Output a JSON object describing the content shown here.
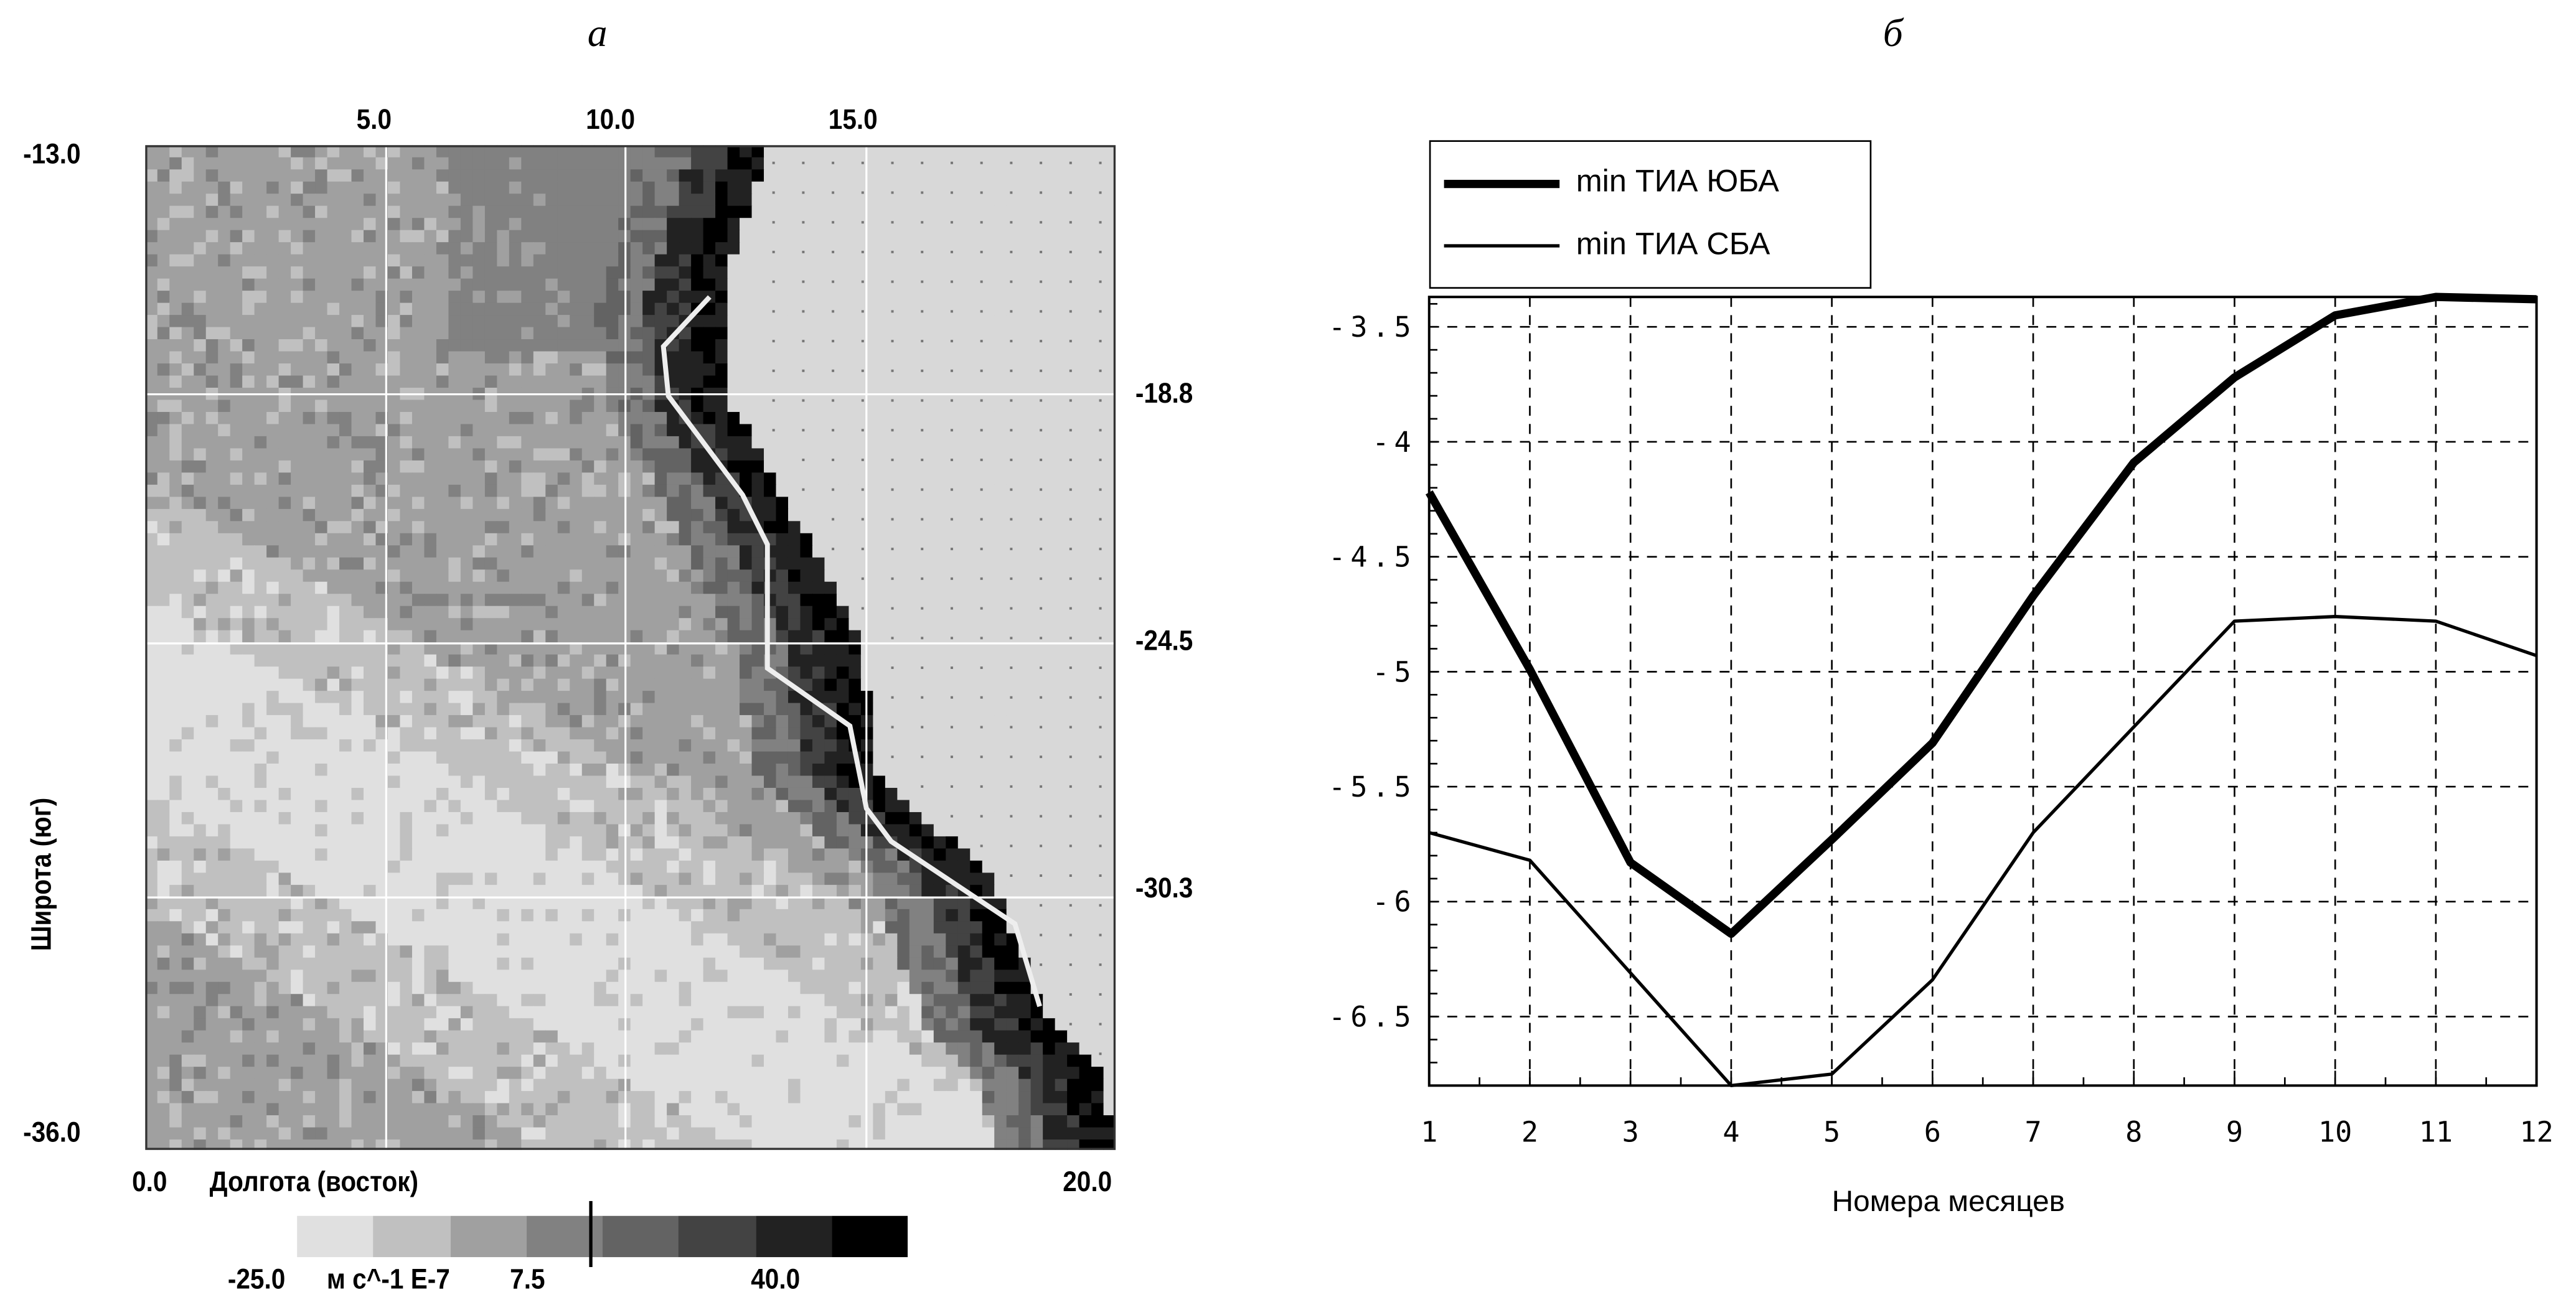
{
  "panel_a": {
    "letter": "а",
    "x_top_ticks": [
      "5.0",
      "10.0",
      "15.0"
    ],
    "y_left_ticks": [
      "-13.0",
      "-36.0"
    ],
    "y_right_ticks": [
      "-18.8",
      "-24.5",
      "-30.3"
    ],
    "x_min_label": "0.0",
    "x_max_label": "20.0",
    "xlabel": "Долгота (восток)",
    "ylabel": "Широта (юг)",
    "colorbar": {
      "min_label": "-25.0",
      "units": "м с^-1 E-7",
      "marker_label": "7.5",
      "max_label": "40.0",
      "colors": [
        "#e0e0e0",
        "#c0c0c0",
        "#a0a0a0",
        "#818181",
        "#636363",
        "#434343",
        "#222222",
        "#000000"
      ]
    }
  },
  "chart_data": {
    "type": "line",
    "panel_letter": "б",
    "title": "",
    "xlabel": "Номера месяцев",
    "ylabel": "",
    "x": [
      1,
      2,
      3,
      4,
      5,
      6,
      7,
      8,
      9,
      10,
      11,
      12
    ],
    "x_tick_labels": [
      "1",
      "2",
      "3",
      "4",
      "5",
      "6",
      "7",
      "8",
      "9",
      "10",
      "11",
      "12"
    ],
    "y_ticks": [
      -3.5,
      -4,
      -4.5,
      -5,
      -5.5,
      -6,
      -6.5
    ],
    "y_tick_labels": [
      "-3.5",
      "-4",
      "-4.5",
      "-5",
      "-5.5",
      "-6",
      "-6.5"
    ],
    "xlim": [
      1,
      12
    ],
    "ylim": [
      -6.8,
      -3.37
    ],
    "grid": true,
    "legend_position": "top-left, outside above plot",
    "series": [
      {
        "name": "min ТИА ЮБА",
        "style": "thick",
        "values": [
          -4.22,
          -4.99,
          -5.83,
          -6.14,
          -5.73,
          -5.31,
          -4.67,
          -4.09,
          -3.72,
          -3.45,
          -3.37,
          -3.38
        ]
      },
      {
        "name": "min ТИА СБА",
        "style": "thin",
        "values": [
          -5.7,
          -5.82,
          -6.31,
          -6.8,
          -6.75,
          -6.34,
          -5.7,
          -5.24,
          -4.78,
          -4.76,
          -4.78,
          -4.93
        ]
      }
    ]
  }
}
